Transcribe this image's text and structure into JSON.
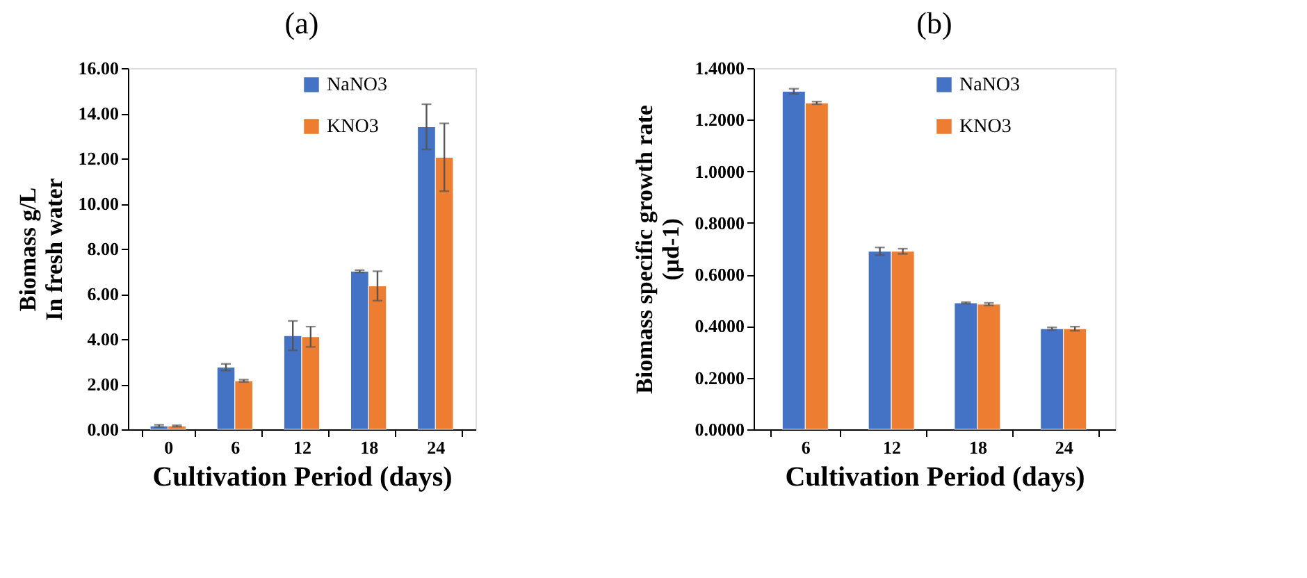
{
  "chart_data": [
    {
      "type": "bar",
      "title": "(a)",
      "xlabel": "Cultivation Period (days)",
      "ylabel": "Biomass g/L\nIn fresh water",
      "categories": [
        "0",
        "6",
        "12",
        "18",
        "24"
      ],
      "series": [
        {
          "name": "NaNO3",
          "color": "#4472c4",
          "values": [
            0.15,
            2.75,
            4.15,
            7.0,
            13.4
          ],
          "errors": [
            0.05,
            0.15,
            0.65,
            0.05,
            1.0
          ]
        },
        {
          "name": "KNO3",
          "color": "#ed7d31",
          "values": [
            0.15,
            2.15,
            4.1,
            6.35,
            12.05
          ],
          "errors": [
            0.03,
            0.05,
            0.45,
            0.65,
            1.5
          ]
        }
      ],
      "ylim": [
        0,
        16
      ],
      "yticks": [
        {
          "value": 0,
          "label": "0.00"
        },
        {
          "value": 2,
          "label": "2.00"
        },
        {
          "value": 4,
          "label": "4.00"
        },
        {
          "value": 6,
          "label": "6.00"
        },
        {
          "value": 8,
          "label": "8.00"
        },
        {
          "value": 10,
          "label": "10.00"
        },
        {
          "value": 12,
          "label": "12.00"
        },
        {
          "value": 14,
          "label": "14.00"
        },
        {
          "value": 16,
          "label": "16.00"
        }
      ],
      "grid": false,
      "legend": "top right"
    },
    {
      "type": "bar",
      "title": "(b)",
      "xlabel": "Cultivation Period (days)",
      "ylabel": "Biomass specific growth rate\n(µd-1)",
      "categories": [
        "6",
        "12",
        "18",
        "24"
      ],
      "series": [
        {
          "name": "NaNO3",
          "color": "#4472c4",
          "values": [
            1.31,
            0.69,
            0.49,
            0.39
          ],
          "errors": [
            0.01,
            0.015,
            0.003,
            0.005
          ]
        },
        {
          "name": "KNO3",
          "color": "#ed7d31",
          "values": [
            1.265,
            0.69,
            0.485,
            0.39
          ],
          "errors": [
            0.005,
            0.01,
            0.005,
            0.008
          ]
        }
      ],
      "ylim": [
        0,
        1.4
      ],
      "yticks": [
        {
          "value": 0,
          "label": "0.0000"
        },
        {
          "value": 0.2,
          "label": "0.2000"
        },
        {
          "value": 0.4,
          "label": "0.4000"
        },
        {
          "value": 0.6,
          "label": "0.6000"
        },
        {
          "value": 0.8,
          "label": "0.8000"
        },
        {
          "value": 1.0,
          "label": "1.0000"
        },
        {
          "value": 1.2,
          "label": "1.2000"
        },
        {
          "value": 1.4,
          "label": "1.4000"
        }
      ],
      "grid": false,
      "legend": "top right"
    }
  ]
}
